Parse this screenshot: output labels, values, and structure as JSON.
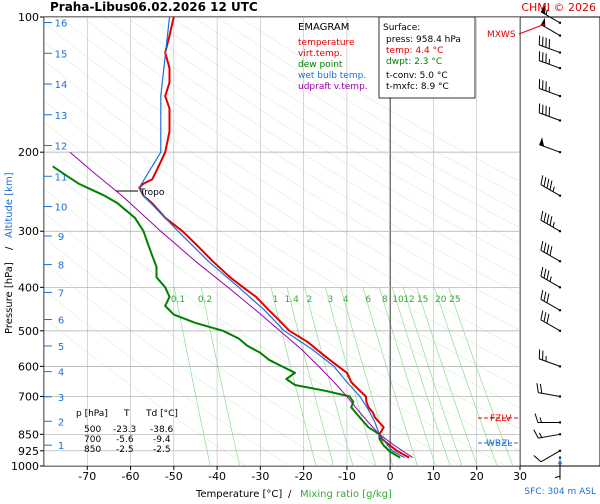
{
  "header": {
    "station": "Praha-Libus",
    "datetime": "06.02.2026 12 UTC",
    "copyright": "CHMI © 2026"
  },
  "legend": {
    "title": "EMAGRAM",
    "items": [
      {
        "label": "temperature",
        "color": "#e00000"
      },
      {
        "label": "virt.temp.",
        "color": "#e00000"
      },
      {
        "label": "dew point",
        "color": "#008000"
      },
      {
        "label": "wet bulb temp.",
        "color": "#1e6fd9"
      },
      {
        "label": "udpraft v.temp.",
        "color": "#9900aa"
      }
    ]
  },
  "surface_box": {
    "title": "Surface:",
    "press": "press: 958.4 hPa",
    "temp": "temp: 4.4 °C",
    "dwpt": "dwpt: 2.3 °C",
    "tconv": "t-conv: 5.0 °C",
    "tmxfc": "t-mxfc: 8.9 °C",
    "temp_color": "#e00000",
    "dwpt_color": "#008000"
  },
  "level_table": {
    "headers": [
      "p [hPa]",
      "T",
      "Td [°C]"
    ],
    "rows": [
      [
        "500",
        "-23.3",
        "-38.6"
      ],
      [
        "700",
        "-5.6",
        "-9.4"
      ],
      [
        "850",
        "-2.5",
        "-2.5"
      ]
    ]
  },
  "annotations": {
    "tropo": "Tropo",
    "mxws": "MXWS",
    "fzlv": "FZLV",
    "wbzl": "WBZL",
    "sfc": "SFC: 304 m ASL"
  },
  "chart_data": {
    "type": "line",
    "xlabel": "Temperature [°C]",
    "xlabel_sep": "/",
    "xlabel2": "Mixing ratio [g/kg]",
    "ylabel": "Pressure [hPa]",
    "ylabel_sep": "/",
    "ylabel2": "Altitude [km]",
    "x_ticks": [
      -70,
      -60,
      -50,
      -40,
      -30,
      -20,
      -10,
      0,
      10,
      20,
      30
    ],
    "xlim": [
      -80,
      30
    ],
    "y_ticks_pressure": [
      100,
      200,
      300,
      400,
      500,
      600,
      700,
      850,
      925,
      1000
    ],
    "ylim_pressure": [
      1000,
      100
    ],
    "y_log_scale": true,
    "altitude_ticks_km": [
      1,
      2,
      3,
      4,
      5,
      6,
      7,
      8,
      9,
      10,
      11,
      12,
      13,
      14,
      15,
      16
    ],
    "mixing_ratio_labels": [
      "0.1",
      "0.2",
      "1",
      "1.4",
      "2",
      "3",
      "4",
      "6",
      "8",
      "10",
      "12",
      "15",
      "20",
      "25"
    ],
    "mixing_ratio_values": [
      0.1,
      0.2,
      1,
      1.4,
      2,
      3,
      4,
      6,
      8,
      10,
      12,
      15,
      20,
      25
    ],
    "mixing_ratio_label_pressure": 440,
    "tropopause_pressure": 240,
    "series": [
      {
        "name": "temperature",
        "color": "#e00000",
        "points": [
          [
            958,
            4.4
          ],
          [
            925,
            1.5
          ],
          [
            900,
            0
          ],
          [
            870,
            -2
          ],
          [
            850,
            -2.5
          ],
          [
            820,
            -1.5
          ],
          [
            800,
            -2.5
          ],
          [
            780,
            -3.5
          ],
          [
            760,
            -4
          ],
          [
            740,
            -5
          ],
          [
            720,
            -5.5
          ],
          [
            700,
            -5.6
          ],
          [
            680,
            -7
          ],
          [
            650,
            -9
          ],
          [
            620,
            -10
          ],
          [
            600,
            -12
          ],
          [
            570,
            -15
          ],
          [
            550,
            -17
          ],
          [
            530,
            -19
          ],
          [
            500,
            -23.3
          ],
          [
            470,
            -26
          ],
          [
            450,
            -28
          ],
          [
            420,
            -31
          ],
          [
            400,
            -34
          ],
          [
            380,
            -37
          ],
          [
            350,
            -41
          ],
          [
            320,
            -45
          ],
          [
            300,
            -48
          ],
          [
            280,
            -52
          ],
          [
            260,
            -55
          ],
          [
            250,
            -57
          ],
          [
            240,
            -58
          ],
          [
            235,
            -57
          ],
          [
            230,
            -55
          ],
          [
            220,
            -54
          ],
          [
            210,
            -53
          ],
          [
            200,
            -52
          ],
          [
            180,
            -51
          ],
          [
            160,
            -51
          ],
          [
            150,
            -52
          ],
          [
            140,
            -51
          ],
          [
            130,
            -51
          ],
          [
            120,
            -52
          ],
          [
            110,
            -51
          ],
          [
            100,
            -50
          ]
        ]
      },
      {
        "name": "wet bulb temp.",
        "color": "#1e6fd9",
        "points": [
          [
            958,
            3.3
          ],
          [
            925,
            0.5
          ],
          [
            900,
            -0.5
          ],
          [
            850,
            -2.5
          ],
          [
            800,
            -3.5
          ],
          [
            750,
            -5
          ],
          [
            700,
            -7
          ],
          [
            650,
            -10
          ],
          [
            600,
            -13
          ],
          [
            550,
            -18
          ],
          [
            500,
            -24.5
          ],
          [
            450,
            -29
          ],
          [
            400,
            -35
          ],
          [
            350,
            -42
          ],
          [
            300,
            -49
          ],
          [
            250,
            -57
          ],
          [
            240,
            -58
          ],
          [
            200,
            -53
          ],
          [
            150,
            -53
          ],
          [
            100,
            -51
          ]
        ]
      },
      {
        "name": "dew point",
        "color": "#008000",
        "points": [
          [
            958,
            2.3
          ],
          [
            930,
            0
          ],
          [
            900,
            -1.5
          ],
          [
            870,
            -2.5
          ],
          [
            850,
            -2.5
          ],
          [
            820,
            -5
          ],
          [
            800,
            -6
          ],
          [
            780,
            -7
          ],
          [
            760,
            -8
          ],
          [
            740,
            -9
          ],
          [
            720,
            -8.5
          ],
          [
            700,
            -9.4
          ],
          [
            680,
            -15
          ],
          [
            660,
            -22
          ],
          [
            640,
            -24
          ],
          [
            620,
            -22
          ],
          [
            600,
            -25
          ],
          [
            580,
            -28
          ],
          [
            560,
            -30
          ],
          [
            540,
            -33
          ],
          [
            520,
            -35
          ],
          [
            500,
            -38.6
          ],
          [
            480,
            -45
          ],
          [
            460,
            -50
          ],
          [
            440,
            -52
          ],
          [
            420,
            -51
          ],
          [
            400,
            -52
          ],
          [
            380,
            -54
          ],
          [
            360,
            -54
          ],
          [
            340,
            -55
          ],
          [
            320,
            -56
          ],
          [
            300,
            -57
          ],
          [
            280,
            -59
          ],
          [
            260,
            -63
          ],
          [
            250,
            -66
          ],
          [
            240,
            -70
          ],
          [
            235,
            -72
          ],
          [
            225,
            -75
          ],
          [
            215,
            -78
          ]
        ]
      },
      {
        "name": "udpraft v.temp.",
        "color": "#9900aa",
        "points": [
          [
            958,
            5.2
          ],
          [
            900,
            1
          ],
          [
            850,
            -2.5
          ],
          [
            800,
            -5
          ],
          [
            750,
            -7.5
          ],
          [
            700,
            -10
          ],
          [
            650,
            -13
          ],
          [
            600,
            -16.5
          ],
          [
            550,
            -20.5
          ],
          [
            500,
            -25.5
          ],
          [
            450,
            -31
          ],
          [
            400,
            -37.5
          ],
          [
            350,
            -45
          ],
          [
            300,
            -53
          ],
          [
            250,
            -62
          ],
          [
            220,
            -69
          ],
          [
            200,
            -74
          ]
        ]
      }
    ],
    "wind_barbs": [
      {
        "p": 958,
        "dir": 180,
        "spd": 5
      },
      {
        "p": 925,
        "dir": 240,
        "spd": 10
      },
      {
        "p": 850,
        "dir": 260,
        "spd": 15
      },
      {
        "p": 800,
        "dir": 270,
        "spd": 15
      },
      {
        "p": 700,
        "dir": 280,
        "spd": 20
      },
      {
        "p": 600,
        "dir": 290,
        "spd": 25
      },
      {
        "p": 500,
        "dir": 300,
        "spd": 30
      },
      {
        "p": 450,
        "dir": 300,
        "spd": 30
      },
      {
        "p": 400,
        "dir": 300,
        "spd": 35
      },
      {
        "p": 350,
        "dir": 300,
        "spd": 40
      },
      {
        "p": 300,
        "dir": 300,
        "spd": 45
      },
      {
        "p": 250,
        "dir": 300,
        "spd": 45
      },
      {
        "p": 200,
        "dir": 290,
        "spd": 50
      },
      {
        "p": 170,
        "dir": 290,
        "spd": 40
      },
      {
        "p": 150,
        "dir": 290,
        "spd": 35
      },
      {
        "p": 130,
        "dir": 290,
        "spd": 35
      },
      {
        "p": 120,
        "dir": 290,
        "spd": 40
      },
      {
        "p": 110,
        "dir": 300,
        "spd": 50
      },
      {
        "p": 103,
        "dir": 300,
        "spd": 55
      }
    ]
  }
}
